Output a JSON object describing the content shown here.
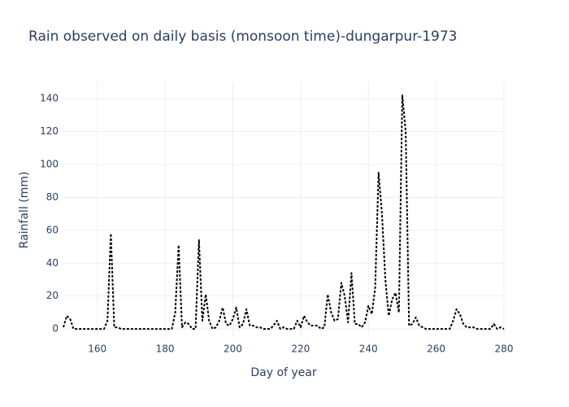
{
  "chart_data": {
    "type": "line",
    "title": "Rain observed on daily basis (monsoon time)-dungarpur-1973",
    "x_label": "Day of year",
    "y_label": "Rainfall (mm)",
    "x": [
      150,
      151,
      152,
      153,
      154,
      155,
      156,
      157,
      158,
      159,
      160,
      161,
      162,
      163,
      164,
      165,
      166,
      167,
      168,
      169,
      170,
      171,
      172,
      173,
      174,
      175,
      176,
      177,
      178,
      179,
      180,
      181,
      182,
      183,
      184,
      185,
      186,
      187,
      188,
      189,
      190,
      191,
      192,
      193,
      194,
      195,
      196,
      197,
      198,
      199,
      200,
      201,
      202,
      203,
      204,
      205,
      206,
      207,
      208,
      209,
      210,
      211,
      212,
      213,
      214,
      215,
      216,
      217,
      218,
      219,
      220,
      221,
      222,
      223,
      224,
      225,
      226,
      227,
      228,
      229,
      230,
      231,
      232,
      233,
      234,
      235,
      236,
      237,
      238,
      239,
      240,
      241,
      242,
      243,
      244,
      245,
      246,
      247,
      248,
      249,
      250,
      251,
      252,
      253,
      254,
      255,
      256,
      257,
      258,
      259,
      260,
      261,
      262,
      263,
      264,
      265,
      266,
      267,
      268,
      269,
      270,
      271,
      272,
      273,
      274,
      275,
      276,
      277,
      278,
      279,
      280
    ],
    "series": [
      {
        "color": "#000000",
        "values": [
          1,
          8,
          6,
          0,
          0,
          0,
          0,
          0,
          0,
          0,
          0,
          0,
          0,
          5,
          58,
          1,
          1,
          0,
          0,
          0,
          0,
          0,
          0,
          0,
          0,
          0,
          0,
          0,
          0,
          0,
          0,
          0,
          0,
          10,
          51,
          1,
          4,
          3,
          0,
          0,
          54,
          5,
          21,
          5,
          0,
          1,
          5,
          13,
          3,
          2,
          6,
          13,
          1,
          3,
          12,
          2,
          2,
          1,
          1,
          0,
          0,
          0,
          2,
          5,
          0,
          1,
          0,
          0,
          0,
          5,
          1,
          8,
          4,
          2,
          2,
          2,
          0,
          1,
          21,
          10,
          5,
          6,
          28,
          20,
          4,
          34,
          3,
          3,
          1,
          4,
          14,
          9,
          25,
          95,
          70,
          30,
          8,
          18,
          22,
          10,
          142,
          120,
          2,
          3,
          7,
          2,
          1,
          0,
          0,
          0,
          0,
          0,
          0,
          0,
          0,
          5,
          12,
          9,
          3,
          1,
          1,
          1,
          0,
          0,
          0,
          0,
          0,
          3,
          0,
          1,
          0
        ]
      }
    ],
    "xlim": [
      150,
      280
    ],
    "ylim": [
      -5.4,
      150.5
    ],
    "xticks": [
      160,
      180,
      200,
      220,
      240,
      260,
      280
    ],
    "yticks": [
      0,
      20,
      40,
      60,
      80,
      100,
      120,
      140
    ],
    "grid": true
  }
}
